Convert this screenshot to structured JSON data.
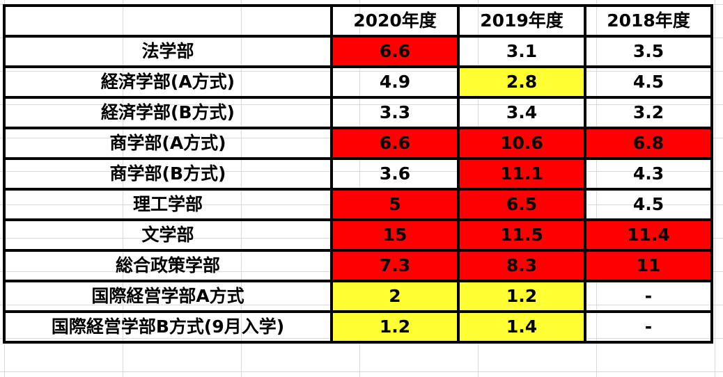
{
  "table": {
    "headers": [
      "",
      "2020年度",
      "2019年度",
      "2018年度"
    ],
    "colors": {
      "red": "#ff0000",
      "yellow": "#ffff33",
      "none": "#ffffff"
    },
    "rows": [
      {
        "label": "法学部",
        "cells": [
          {
            "v": "6.6",
            "c": "red"
          },
          {
            "v": "3.1",
            "c": "none"
          },
          {
            "v": "3.5",
            "c": "none"
          }
        ]
      },
      {
        "label": "経済学部(A方式)",
        "cells": [
          {
            "v": "4.9",
            "c": "none"
          },
          {
            "v": "2.8",
            "c": "yellow"
          },
          {
            "v": "4.5",
            "c": "none"
          }
        ]
      },
      {
        "label": "経済学部(B方式)",
        "cells": [
          {
            "v": "3.3",
            "c": "none"
          },
          {
            "v": "3.4",
            "c": "none"
          },
          {
            "v": "3.2",
            "c": "none"
          }
        ]
      },
      {
        "label": "商学部(A方式)",
        "cells": [
          {
            "v": "6.6",
            "c": "red"
          },
          {
            "v": "10.6",
            "c": "red"
          },
          {
            "v": "6.8",
            "c": "red"
          }
        ]
      },
      {
        "label": "商学部(B方式)",
        "cells": [
          {
            "v": "3.6",
            "c": "none"
          },
          {
            "v": "11.1",
            "c": "red"
          },
          {
            "v": "4.3",
            "c": "none"
          }
        ]
      },
      {
        "label": "理工学部",
        "cells": [
          {
            "v": "5",
            "c": "red"
          },
          {
            "v": "6.5",
            "c": "red"
          },
          {
            "v": "4.5",
            "c": "none"
          }
        ]
      },
      {
        "label": "文学部",
        "cells": [
          {
            "v": "15",
            "c": "red"
          },
          {
            "v": "11.5",
            "c": "red"
          },
          {
            "v": "11.4",
            "c": "red"
          }
        ]
      },
      {
        "label": "総合政策学部",
        "cells": [
          {
            "v": "7.3",
            "c": "red"
          },
          {
            "v": "8.3",
            "c": "red"
          },
          {
            "v": "11",
            "c": "red"
          }
        ]
      },
      {
        "label": "国際経営学部A方式",
        "cells": [
          {
            "v": "2",
            "c": "yellow"
          },
          {
            "v": "1.2",
            "c": "yellow"
          },
          {
            "v": "-",
            "c": "none"
          }
        ]
      },
      {
        "label": "国際経営学部B方式(9月入学)",
        "cells": [
          {
            "v": "1.2",
            "c": "yellow"
          },
          {
            "v": "1.4",
            "c": "yellow"
          },
          {
            "v": "-",
            "c": "none"
          }
        ]
      }
    ]
  }
}
